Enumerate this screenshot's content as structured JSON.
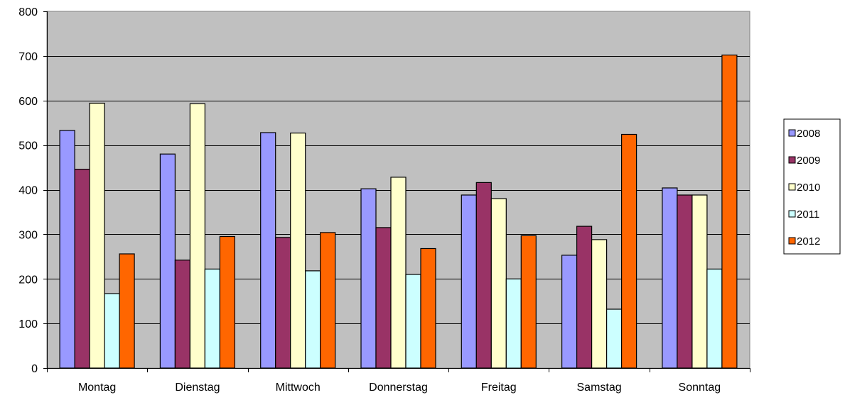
{
  "chart_data": {
    "type": "bar",
    "categories": [
      "Montag",
      "Dienstag",
      "Mittwoch",
      "Donnerstag",
      "Freitag",
      "Samstag",
      "Sonntag"
    ],
    "series": [
      {
        "name": "2008",
        "color": "#9999ff",
        "values": [
          533,
          480,
          528,
          402,
          388,
          253,
          404
        ]
      },
      {
        "name": "2009",
        "color": "#993366",
        "values": [
          446,
          242,
          293,
          315,
          416,
          318,
          388
        ]
      },
      {
        "name": "2010",
        "color": "#ffffcc",
        "values": [
          594,
          593,
          527,
          428,
          380,
          288,
          388
        ]
      },
      {
        "name": "2011",
        "color": "#ccffff",
        "values": [
          167,
          222,
          218,
          210,
          200,
          132,
          222
        ]
      },
      {
        "name": "2012",
        "color": "#ff6600",
        "values": [
          256,
          295,
          304,
          268,
          297,
          524,
          702
        ]
      }
    ],
    "y_ticks": [
      0,
      100,
      200,
      300,
      400,
      500,
      600,
      700,
      800
    ],
    "ylim": [
      0,
      800
    ],
    "grid": true,
    "plot_background": "#c0c0c0",
    "legend_position": "right"
  }
}
